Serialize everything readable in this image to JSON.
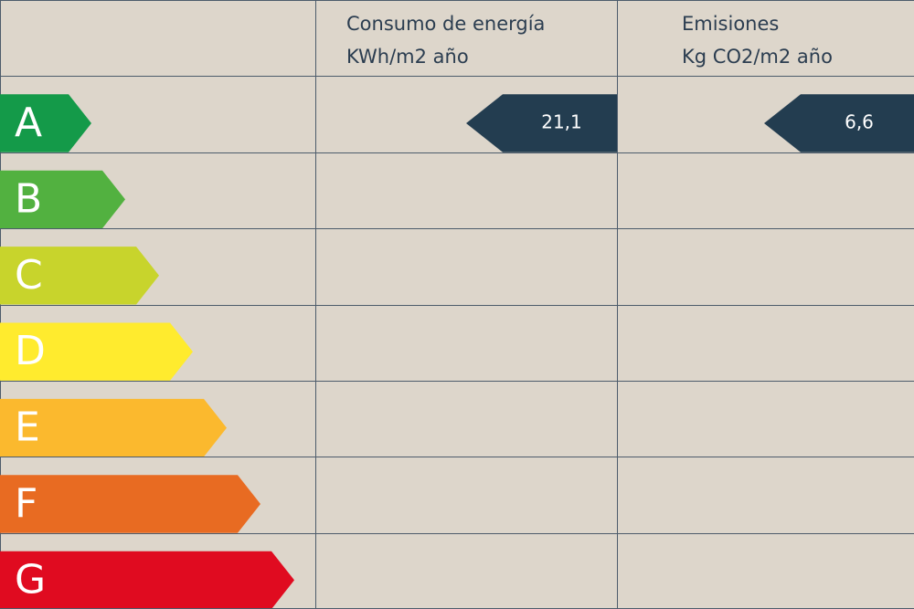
{
  "header": {
    "energy": {
      "title": "Consumo de energía",
      "unit": "KWh/m2 año"
    },
    "emissions": {
      "title": "Emisiones",
      "unit": "Kg CO2/m2 año"
    }
  },
  "value_color": "#233d50",
  "rows": [
    {
      "label": "A",
      "color": "#149a49",
      "energy": "21,1",
      "emissions": "6,6"
    },
    {
      "label": "B",
      "color": "#52b140"
    },
    {
      "label": "C",
      "color": "#c8d42c"
    },
    {
      "label": "D",
      "color": "#ffeb2e"
    },
    {
      "label": "E",
      "color": "#fbb92e"
    },
    {
      "label": "F",
      "color": "#e86b22"
    },
    {
      "label": "G",
      "color": "#e00b20"
    }
  ]
}
